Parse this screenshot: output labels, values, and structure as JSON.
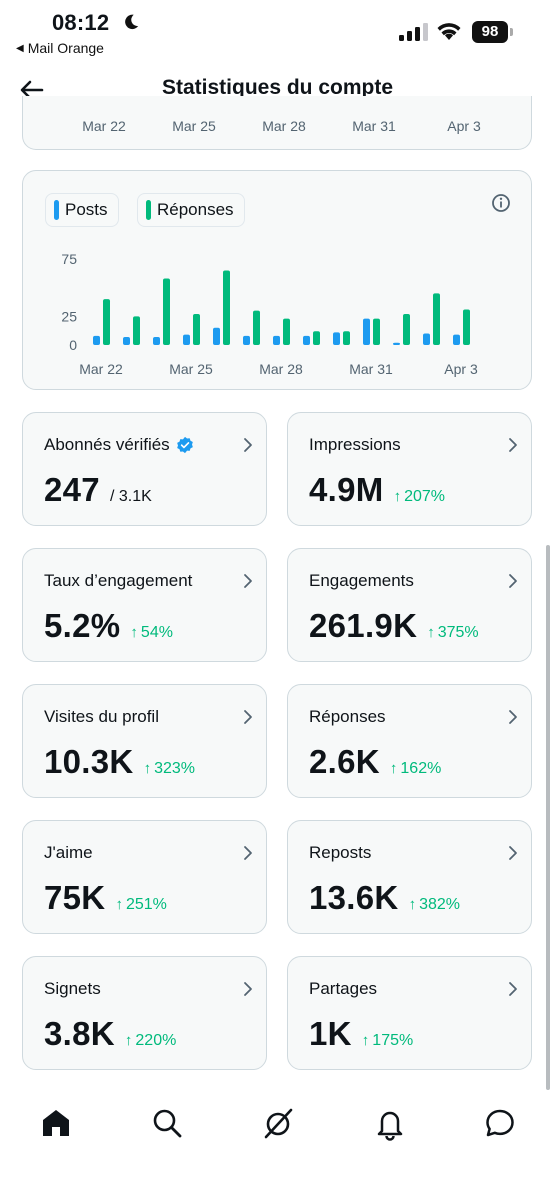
{
  "status_bar": {
    "time": "08:12",
    "back_app": "Mail Orange",
    "battery": "98"
  },
  "header": {
    "title": "Statistiques du compte"
  },
  "top_chart_axis": [
    "Mar 22",
    "Mar 25",
    "Mar 28",
    "Mar 31",
    "Apr 3"
  ],
  "chart_data": {
    "type": "bar",
    "legend_placement": "top-left",
    "ylim": [
      0,
      75
    ],
    "y_ticks": [
      "75",
      "25",
      "0"
    ],
    "x_tick_labels": [
      "Mar 22",
      "Mar 25",
      "Mar 28",
      "Mar 31",
      "Apr 3"
    ],
    "days": [
      "Mar 22",
      "Mar 23",
      "Mar 24",
      "Mar 25",
      "Mar 26",
      "Mar 27",
      "Mar 28",
      "Mar 29",
      "Mar 30",
      "Mar 31",
      "Apr 1",
      "Apr 2",
      "Apr 3"
    ],
    "series": [
      {
        "name": "Posts",
        "color": "#1d9bf0",
        "values": [
          8,
          7,
          7,
          9,
          15,
          8,
          8,
          8,
          11,
          23,
          2,
          10,
          9
        ]
      },
      {
        "name": "Réponses",
        "color": "#00ba7c",
        "values": [
          40,
          25,
          58,
          27,
          65,
          30,
          23,
          12,
          12,
          23,
          27,
          45,
          31
        ]
      }
    ]
  },
  "stats": [
    {
      "label": "Abonnés vérifiés",
      "value": "247",
      "sub": "/ 3.1K",
      "change": "",
      "verified": true
    },
    {
      "label": "Impressions",
      "value": "4.9M",
      "sub": "",
      "change": "207%"
    },
    {
      "label": "Taux d’engagement",
      "value": "5.2%",
      "sub": "",
      "change": "54%"
    },
    {
      "label": "Engagements",
      "value": "261.9K",
      "sub": "",
      "change": "375%"
    },
    {
      "label": "Visites du profil",
      "value": "10.3K",
      "sub": "",
      "change": "323%"
    },
    {
      "label": "Réponses",
      "value": "2.6K",
      "sub": "",
      "change": "162%"
    },
    {
      "label": "J'aime",
      "value": "75K",
      "sub": "",
      "change": "251%"
    },
    {
      "label": "Reposts",
      "value": "13.6K",
      "sub": "",
      "change": "382%"
    },
    {
      "label": "Signets",
      "value": "3.8K",
      "sub": "",
      "change": "220%"
    },
    {
      "label": "Partages",
      "value": "1K",
      "sub": "",
      "change": "175%"
    }
  ],
  "change_arrow": "↑",
  "nav": [
    "home-icon",
    "search-icon",
    "grok-icon",
    "notifications-icon",
    "messages-icon"
  ]
}
